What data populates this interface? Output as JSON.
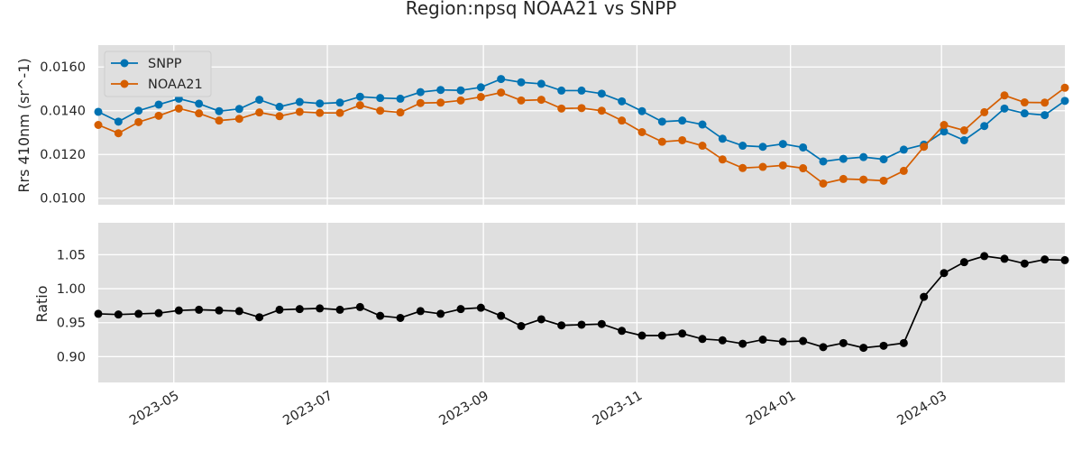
{
  "chart_data": [
    {
      "type": "line",
      "title": "Region:npsq NOAA21 vs SNPP",
      "xlabel": "",
      "ylabel": "Rrs 410nm (sr^-1)",
      "ylim": [
        0.0097,
        0.017
      ],
      "yticks": [
        0.01,
        0.012,
        0.014,
        0.016
      ],
      "ytick_labels": [
        "0.0100",
        "0.0120",
        "0.0140",
        "0.0160"
      ],
      "legend_position": "top-left",
      "grid": true,
      "x": [
        "2023-04-01",
        "2023-04-09",
        "2023-04-17",
        "2023-04-25",
        "2023-05-03",
        "2023-05-11",
        "2023-05-19",
        "2023-05-27",
        "2023-06-04",
        "2023-06-12",
        "2023-06-20",
        "2023-06-28",
        "2023-07-06",
        "2023-07-14",
        "2023-07-22",
        "2023-07-30",
        "2023-08-07",
        "2023-08-15",
        "2023-08-23",
        "2023-08-31",
        "2023-09-08",
        "2023-09-16",
        "2023-09-24",
        "2023-10-02",
        "2023-10-10",
        "2023-10-18",
        "2023-10-26",
        "2023-11-03",
        "2023-11-11",
        "2023-11-19",
        "2023-11-27",
        "2023-12-05",
        "2023-12-13",
        "2023-12-21",
        "2023-12-29",
        "2024-01-06",
        "2024-01-14",
        "2024-01-22",
        "2024-01-30",
        "2024-02-07",
        "2024-02-15",
        "2024-02-23",
        "2024-03-02",
        "2024-03-10",
        "2024-03-18",
        "2024-03-26",
        "2024-04-03",
        "2024-04-11",
        "2024-04-19"
      ],
      "series": [
        {
          "name": "SNPP",
          "color": "#0072b2",
          "values": [
            0.01395,
            0.0135,
            0.014,
            0.01428,
            0.01455,
            0.01432,
            0.01398,
            0.01408,
            0.0145,
            0.01418,
            0.0144,
            0.01433,
            0.01437,
            0.01464,
            0.01458,
            0.01455,
            0.01485,
            0.01495,
            0.01493,
            0.01507,
            0.01545,
            0.0153,
            0.01523,
            0.01492,
            0.01492,
            0.01478,
            0.01443,
            0.01398,
            0.0135,
            0.01355,
            0.01337,
            0.01272,
            0.0124,
            0.01235,
            0.01248,
            0.01232,
            0.01168,
            0.0118,
            0.01188,
            0.01178,
            0.01222,
            0.01245,
            0.01305,
            0.01265,
            0.0133,
            0.0141,
            0.01388,
            0.0138,
            0.01445
          ]
        },
        {
          "name": "NOAA21",
          "color": "#d55e00",
          "values": [
            0.01335,
            0.01297,
            0.01348,
            0.01377,
            0.0141,
            0.01388,
            0.01355,
            0.01363,
            0.01392,
            0.01375,
            0.01395,
            0.0139,
            0.0139,
            0.01425,
            0.014,
            0.01392,
            0.01435,
            0.01437,
            0.01447,
            0.01463,
            0.01483,
            0.01447,
            0.0145,
            0.0141,
            0.01412,
            0.014,
            0.01355,
            0.01302,
            0.01258,
            0.01265,
            0.0124,
            0.01177,
            0.01138,
            0.01143,
            0.0115,
            0.01137,
            0.01067,
            0.01088,
            0.01085,
            0.0108,
            0.01125,
            0.01235,
            0.01335,
            0.0131,
            0.01393,
            0.0147,
            0.01438,
            0.01437,
            0.01505
          ]
        }
      ]
    },
    {
      "type": "line",
      "title": "",
      "xlabel": "",
      "ylabel": "Ratio",
      "ylim": [
        0.862,
        1.097
      ],
      "yticks": [
        0.9,
        0.95,
        1.0,
        1.05
      ],
      "ytick_labels": [
        "0.90",
        "0.95",
        "1.00",
        "1.05"
      ],
      "grid": true,
      "x_tick_labels": [
        "2023-05",
        "2023-07",
        "2023-09",
        "2023-11",
        "2024-01",
        "2024-03"
      ],
      "x_tick_dates": [
        "2023-05-01",
        "2023-07-01",
        "2023-09-01",
        "2023-11-01",
        "2024-01-01",
        "2024-03-01"
      ],
      "series": [
        {
          "color": "#000000",
          "values": [
            0.963,
            0.962,
            0.963,
            0.964,
            0.968,
            0.969,
            0.968,
            0.967,
            0.958,
            0.969,
            0.97,
            0.971,
            0.969,
            0.973,
            0.96,
            0.957,
            0.967,
            0.963,
            0.97,
            0.972,
            0.96,
            0.945,
            0.955,
            0.946,
            0.947,
            0.948,
            0.938,
            0.931,
            0.931,
            0.934,
            0.926,
            0.924,
            0.919,
            0.925,
            0.922,
            0.923,
            0.914,
            0.92,
            0.913,
            0.916,
            0.92,
            0.988,
            1.023,
            1.039,
            1.048,
            1.044,
            1.037,
            1.043,
            1.042
          ]
        }
      ]
    }
  ]
}
